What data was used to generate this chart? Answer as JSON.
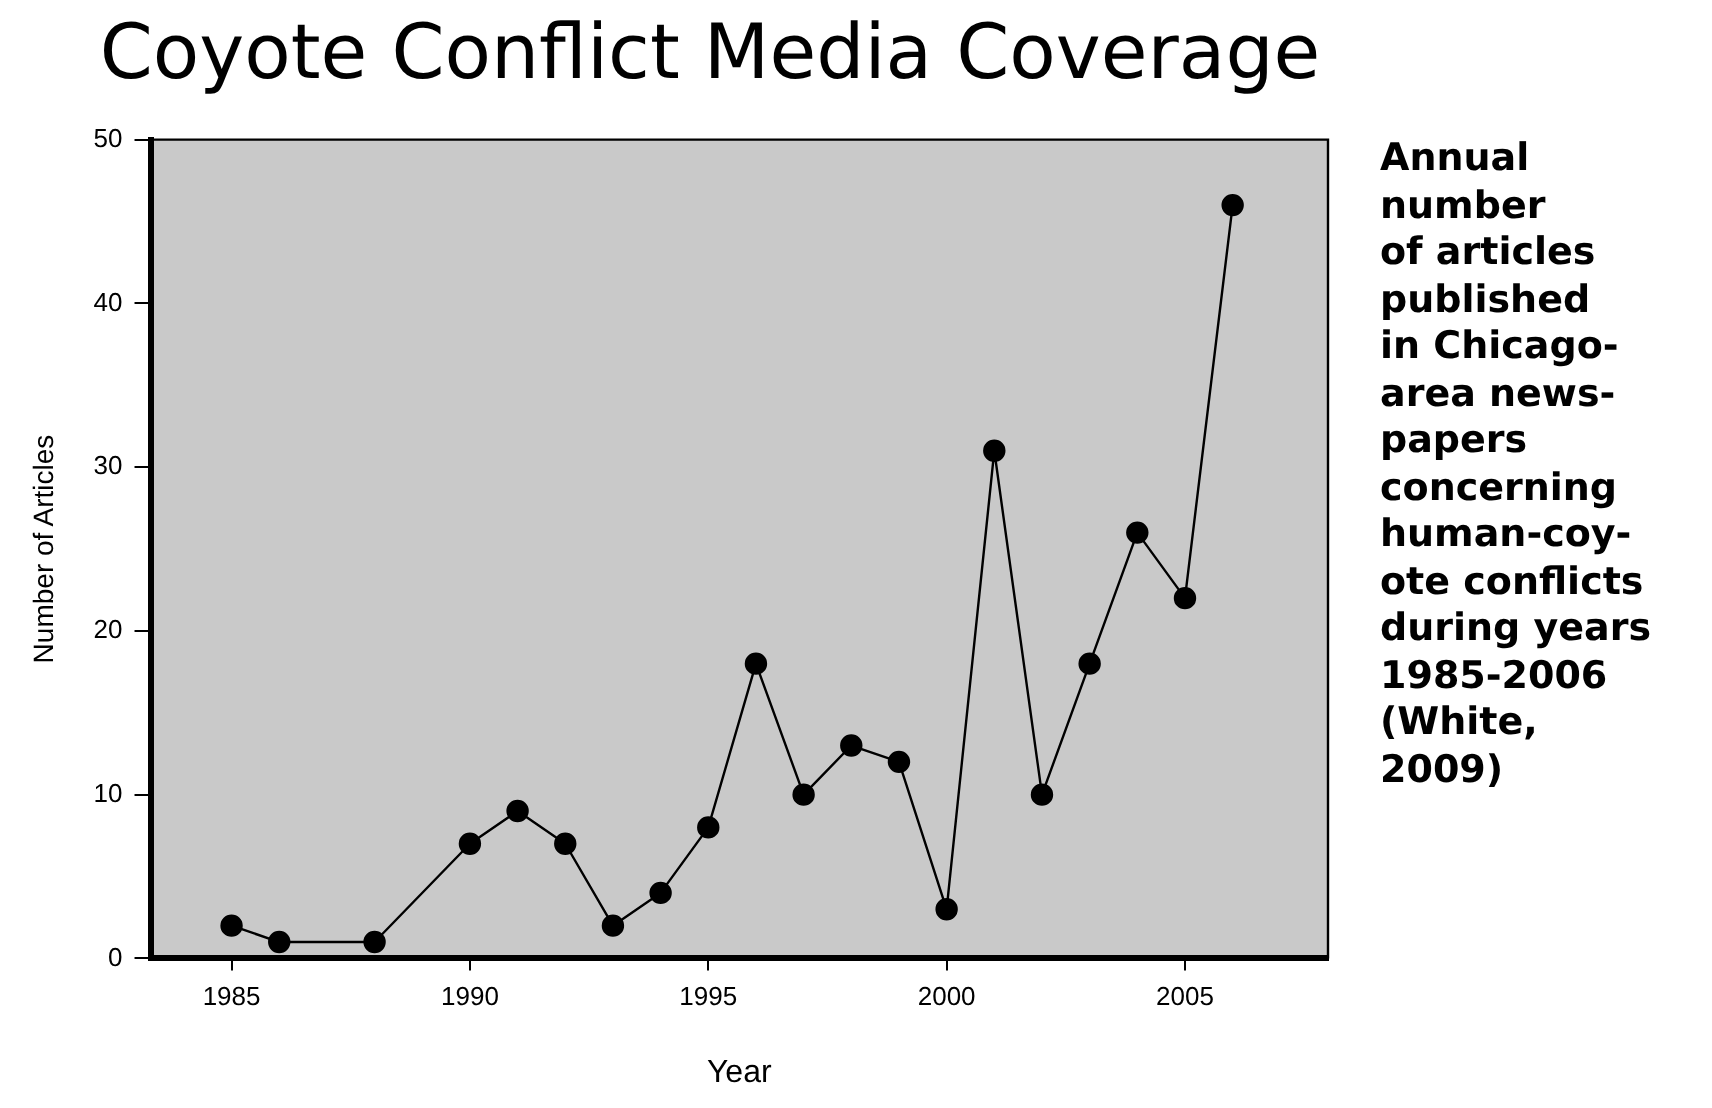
{
  "chart_data": {
    "type": "line",
    "title": "Coyote Conflict Media Coverage",
    "xlabel": "Year",
    "ylabel": "Number of Articles",
    "annotations": [
      "Annual\nnumber\nof articles\npublished\nin Chicago-\narea news-\npapers\nconcerning\nhuman-coy-\note conflicts\nduring years\n1985-2006\n(White,\n2009)"
    ],
    "x": [
      1985,
      1986,
      1988,
      1990,
      1991,
      1992,
      1993,
      1994,
      1995,
      1996,
      1997,
      1998,
      1999,
      2000,
      2001,
      2002,
      2003,
      2004,
      2005,
      2006
    ],
    "series": [
      {
        "color": "#000000",
        "values": [
          2,
          1,
          1,
          7,
          9,
          7,
          2,
          4,
          8,
          18,
          10,
          13,
          12,
          3,
          31,
          10,
          18,
          26,
          22,
          46
        ]
      }
    ],
    "xlim": [
      1983.3,
      2008
    ],
    "xticks": [
      1985,
      1990,
      1995,
      2000,
      2005
    ],
    "ylim": [
      0,
      50
    ],
    "yticks": [
      0,
      10,
      20,
      30,
      40,
      50
    ],
    "grid": false,
    "legend": false,
    "marker": "circle",
    "line_style": "solid"
  }
}
